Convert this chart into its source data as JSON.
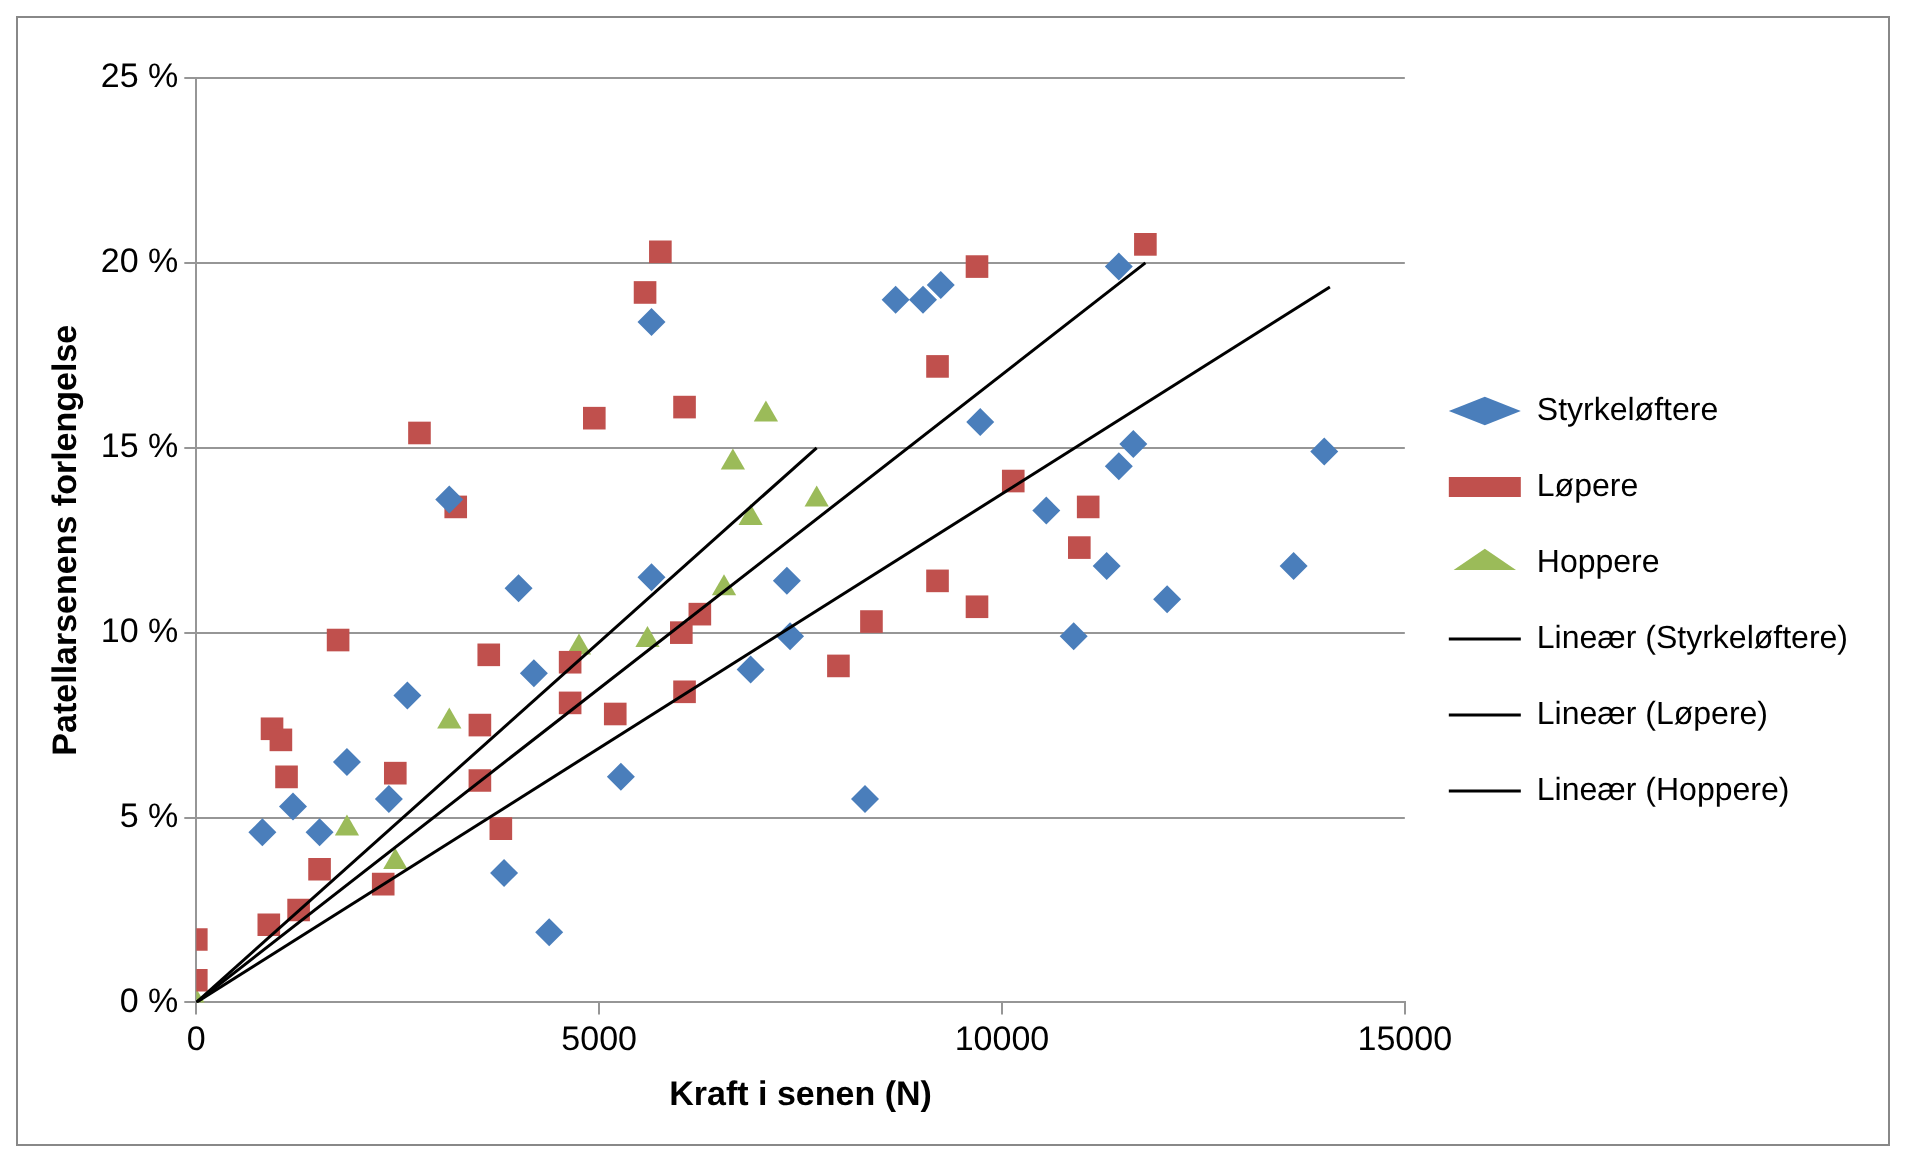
{
  "chart_data": {
    "type": "scatter",
    "xlabel": "Kraft i senen (N)",
    "ylabel": "Patellarsenens forlengelse",
    "xlim": [
      0,
      15000
    ],
    "xticks": [
      0,
      5000,
      10000,
      15000
    ],
    "ylim": [
      0,
      25
    ],
    "yticks": [
      {
        "value": 0,
        "label": "0 %"
      },
      {
        "value": 5,
        "label": "5 %"
      },
      {
        "value": 10,
        "label": "10 %"
      },
      {
        "value": 15,
        "label": "15 %"
      },
      {
        "value": 20,
        "label": "20 %"
      },
      {
        "value": 25,
        "label": "25 %"
      }
    ],
    "grid": "y",
    "legend": "right",
    "series": [
      {
        "name": "Styrkeløftere",
        "color": "#4a7ebb",
        "marker": "diamond",
        "x": [
          820,
          1200,
          1530,
          1870,
          2390,
          2620,
          3140,
          3820,
          4000,
          4190,
          4380,
          5270,
          5650,
          5650,
          6880,
          7330,
          7370,
          8300,
          8680,
          9020,
          9240,
          9730,
          10550,
          10890,
          11300,
          11450,
          11630,
          11450,
          12050,
          13620,
          14000
        ],
        "values": [
          4.6,
          5.3,
          4.6,
          6.5,
          5.5,
          8.3,
          13.6,
          3.5,
          11.2,
          8.9,
          1.9,
          6.1,
          11.5,
          18.4,
          9.0,
          11.4,
          9.9,
          5.5,
          19.0,
          19.0,
          19.4,
          15.7,
          13.3,
          9.9,
          11.8,
          14.5,
          15.1,
          19.9,
          10.9,
          11.8,
          14.9
        ]
      },
      {
        "name": "Løpere",
        "color": "#c0504d",
        "marker": "square",
        "x": [
          0,
          0,
          900,
          1270,
          940,
          1050,
          1120,
          1760,
          1530,
          2320,
          2470,
          2770,
          3220,
          3630,
          3520,
          3780,
          3520,
          4640,
          4640,
          5200,
          4940,
          5570,
          5760,
          6060,
          6020,
          6250,
          6060,
          7970,
          8380,
          9200,
          9690,
          9200,
          9690,
          10140,
          11070,
          10960,
          11780
        ],
        "values": [
          1.7,
          0.6,
          2.1,
          2.5,
          7.4,
          7.1,
          6.1,
          9.8,
          3.6,
          3.2,
          6.2,
          15.4,
          13.4,
          9.4,
          6.0,
          4.7,
          7.5,
          9.2,
          8.1,
          7.8,
          15.8,
          19.2,
          20.3,
          16.1,
          10.0,
          10.5,
          8.4,
          9.1,
          10.3,
          11.4,
          10.7,
          17.2,
          19.9,
          14.1,
          13.4,
          12.3,
          20.5
        ]
      },
      {
        "name": "Hoppere",
        "color": "#9bbb59",
        "marker": "triangle",
        "x": [
          0,
          1870,
          2470,
          3140,
          4750,
          5600,
          6550,
          6880,
          6660,
          7070,
          7700
        ],
        "values": [
          0,
          4.7,
          3.8,
          7.6,
          9.6,
          9.8,
          11.2,
          13.1,
          14.6,
          15.9,
          13.6
        ]
      },
      {
        "name": "Lineær (Styrkeløftere)",
        "type": "line",
        "color": "#000000",
        "marker": "none",
        "x": [
          0,
          14070
        ],
        "values": [
          0,
          19.35
        ]
      },
      {
        "name": "Lineær (Løpere)",
        "type": "line",
        "color": "#000000",
        "marker": "none",
        "x": [
          0,
          11780
        ],
        "values": [
          0,
          20.0
        ]
      },
      {
        "name": "Lineær (Hoppere)",
        "type": "line",
        "color": "#000000",
        "marker": "none",
        "x": [
          0,
          7700
        ],
        "values": [
          0,
          15.0
        ]
      }
    ]
  }
}
